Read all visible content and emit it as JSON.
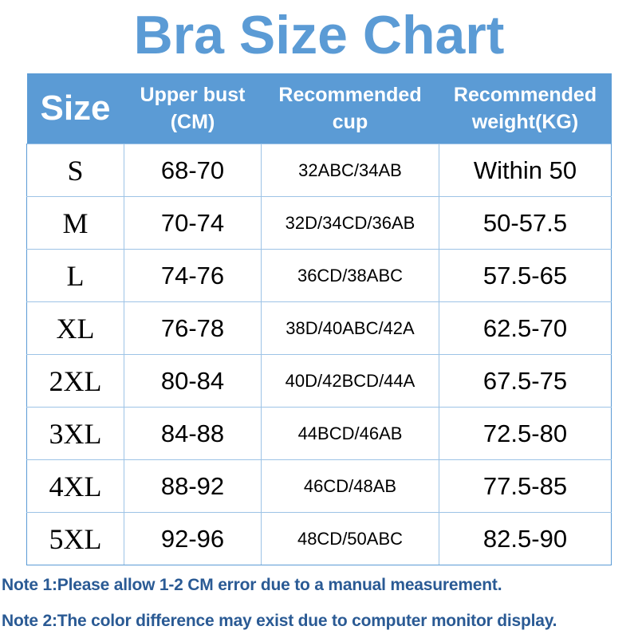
{
  "title": "Bra Size Chart",
  "colors": {
    "header": "#5b9bd5",
    "note": "#2a5a94",
    "border": "#9dc3e6"
  },
  "headers": [
    "Size",
    "Upper bust (CM)",
    "Recommended cup",
    "Recommended weight(KG)"
  ],
  "rows": [
    [
      "S",
      "68-70",
      "32ABC/34AB",
      "Within 50"
    ],
    [
      "M",
      "70-74",
      "32D/34CD/36AB",
      "50-57.5"
    ],
    [
      "L",
      "74-76",
      "36CD/38ABC",
      "57.5-65"
    ],
    [
      "XL",
      "76-78",
      "38D/40ABC/42A",
      "62.5-70"
    ],
    [
      "2XL",
      "80-84",
      "40D/42BCD/44A",
      "67.5-75"
    ],
    [
      "3XL",
      "84-88",
      "44BCD/46AB",
      "72.5-80"
    ],
    [
      "4XL",
      "88-92",
      "46CD/48AB",
      "77.5-85"
    ],
    [
      "5XL",
      "92-96",
      "48CD/50ABC",
      "82.5-90"
    ]
  ],
  "notes": [
    "Note 1:Please allow 1-2 CM error due to a manual measurement.",
    "Note 2:The color difference may exist due to computer monitor display."
  ]
}
